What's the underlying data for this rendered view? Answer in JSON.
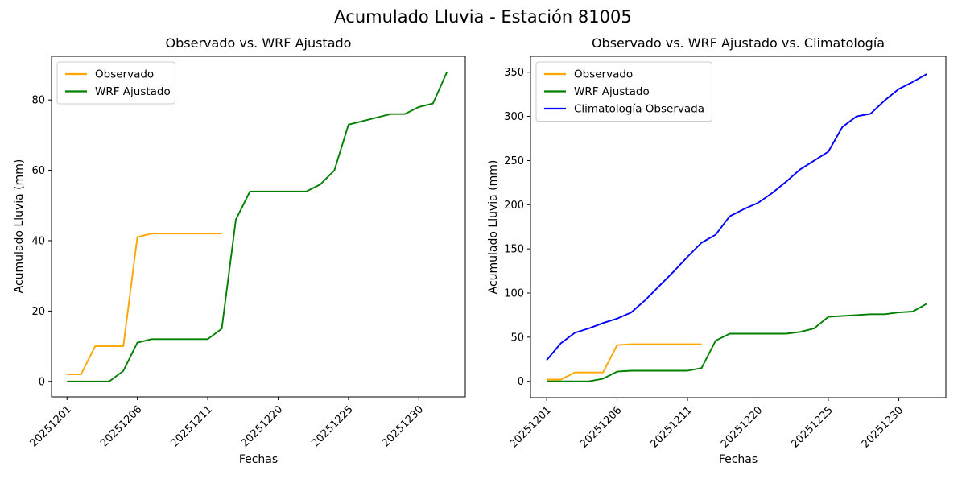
{
  "suptitle": "Acumulado Lluvia - Estación 81005",
  "chart_data": [
    {
      "type": "line",
      "title": "Observado vs. WRF Ajustado",
      "xlabel": "Fechas",
      "ylabel": "Acumulado Lluvia (mm)",
      "x_tick_positions": [
        0,
        5,
        10,
        15,
        20,
        25
      ],
      "x_tick_labels": [
        "20251201",
        "20251206",
        "20251211",
        "20251220",
        "20251225",
        "20251230"
      ],
      "y_ticks": [
        0,
        20,
        40,
        60,
        80
      ],
      "xlim": [
        -1.1,
        28.3
      ],
      "ylim": [
        -4.4,
        92.4
      ],
      "grid": false,
      "legend_position": "upper left",
      "series": [
        {
          "name": "Observado",
          "color": "#FFA500",
          "values": [
            2,
            2,
            10,
            10,
            10,
            41,
            42,
            42,
            42,
            42,
            42,
            42
          ]
        },
        {
          "name": "WRF Ajustado",
          "color": "#008000",
          "values": [
            0,
            0,
            0,
            0,
            3,
            11,
            12,
            12,
            12,
            12,
            12,
            15,
            46,
            54,
            54,
            54,
            54,
            54,
            56,
            60,
            73,
            74,
            75,
            76,
            76,
            78,
            79,
            88
          ]
        }
      ]
    },
    {
      "type": "line",
      "title": "Observado vs. WRF Ajustado vs. Climatología",
      "xlabel": "Fechas",
      "ylabel": "Acumulado Lluvia (mm)",
      "x_tick_positions": [
        0,
        5,
        10,
        15,
        20,
        25
      ],
      "x_tick_labels": [
        "20251201",
        "20251206",
        "20251211",
        "20251220",
        "20251225",
        "20251230"
      ],
      "y_ticks": [
        0,
        50,
        100,
        150,
        200,
        250,
        300,
        350
      ],
      "xlim": [
        -1.15,
        28.35
      ],
      "ylim": [
        -18.5,
        368
      ],
      "grid": false,
      "legend_position": "upper left",
      "series": [
        {
          "name": "Observado",
          "color": "#FFA500",
          "values": [
            2,
            2,
            10,
            10,
            10,
            41,
            42,
            42,
            42,
            42,
            42,
            42
          ]
        },
        {
          "name": "WRF Ajustado",
          "color": "#008000",
          "values": [
            0,
            0,
            0,
            0,
            3,
            11,
            12,
            12,
            12,
            12,
            12,
            15,
            46,
            54,
            54,
            54,
            54,
            54,
            56,
            60,
            73,
            74,
            75,
            76,
            76,
            78,
            79,
            88
          ]
        },
        {
          "name": "Climatología Observada",
          "color": "#0000FF",
          "values": [
            24,
            43,
            55,
            60,
            66,
            71,
            78,
            92,
            108,
            124,
            141,
            157,
            166,
            187,
            195,
            202,
            213,
            226,
            240,
            250,
            260,
            288,
            300,
            303,
            318,
            331,
            339,
            348
          ]
        }
      ]
    }
  ]
}
